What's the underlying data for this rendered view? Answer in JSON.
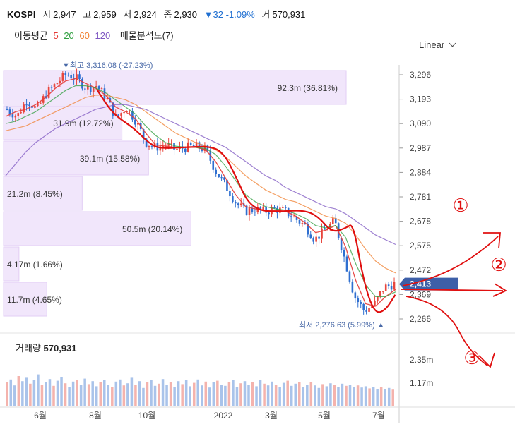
{
  "header": {
    "symbol": "KOSPI",
    "open_label": "시",
    "open": "2,947",
    "high_label": "고",
    "high": "2,959",
    "low_label": "저",
    "low": "2,924",
    "close_label": "종",
    "close": "2,930",
    "change": "▼32 -1.09%",
    "volume_label": "거",
    "volume": "570,931"
  },
  "indicators": {
    "ma_label": "이동평균",
    "ma_periods": [
      {
        "value": "5",
        "color": "#e53935"
      },
      {
        "value": "20",
        "color": "#2e9e3e"
      },
      {
        "value": "60",
        "color": "#f08030"
      },
      {
        "value": "120",
        "color": "#7e57c2"
      }
    ],
    "volume_profile_label": "매물분석도(7)"
  },
  "scale_toggle": "Linear",
  "volume_panel": {
    "label": "거래량",
    "value": "570,931",
    "y_ticks": [
      "2.35m",
      "1.17m"
    ]
  },
  "chart_data": {
    "type": "candlestick",
    "symbol": "KOSPI",
    "x_ticks": [
      "6월",
      "8월",
      "10월",
      "2022",
      "3월",
      "5월",
      "7월"
    ],
    "y_ticks": [
      3296,
      3193,
      3090,
      2987,
      2884,
      2781,
      2678,
      2575,
      2472,
      2369,
      2266
    ],
    "y_tick_labels": [
      "3,296",
      "3,193",
      "3,090",
      "2,987",
      "2,884",
      "2,781",
      "2,678",
      "2,575",
      "2,472",
      "2,369",
      "2,266"
    ],
    "y_range": [
      2230,
      3345
    ],
    "last_price": 2413,
    "last_price_label": "2,413",
    "high_annotation": {
      "text": "▼최고 3,316.08 (-27.23%)",
      "value": 3316.08
    },
    "low_annotation": {
      "text": "최저 2,276.63 (5.99%) ▲",
      "value": 2276.63
    },
    "close_path": [
      3150,
      3120,
      3190,
      3150,
      3220,
      3260,
      3300,
      3280,
      3240,
      3250,
      3200,
      3110,
      3160,
      3100,
      3010,
      2990,
      3000,
      2980,
      2990,
      2995,
      2980,
      2890,
      2830,
      2760,
      2720,
      2730,
      2720,
      2730,
      2720,
      2690,
      2660,
      2600,
      2640,
      2680,
      2520,
      2360,
      2300,
      2330,
      2400,
      2413
    ],
    "ma_series": [
      {
        "period": "5",
        "color": "#e53935",
        "values": [
          3120,
          3140,
          3150,
          3170,
          3200,
          3240,
          3270,
          3280,
          3260,
          3240,
          3210,
          3160,
          3140,
          3110,
          3050,
          3000,
          2995,
          2990,
          2990,
          2990,
          2980,
          2930,
          2860,
          2790,
          2740,
          2730,
          2725,
          2725,
          2720,
          2700,
          2670,
          2630,
          2640,
          2660,
          2570,
          2430,
          2330,
          2320,
          2360,
          2390
        ]
      },
      {
        "period": "20",
        "color": "#2e9e3e",
        "values": [
          3090,
          3100,
          3120,
          3140,
          3170,
          3200,
          3230,
          3250,
          3250,
          3240,
          3220,
          3190,
          3160,
          3130,
          3080,
          3040,
          3010,
          2995,
          2990,
          2990,
          2985,
          2960,
          2910,
          2850,
          2790,
          2760,
          2740,
          2730,
          2725,
          2710,
          2690,
          2660,
          2650,
          2660,
          2610,
          2500,
          2410,
          2360,
          2360,
          2380
        ]
      },
      {
        "period": "60",
        "color": "#f08030",
        "values": [
          3060,
          3070,
          3080,
          3100,
          3120,
          3140,
          3160,
          3180,
          3200,
          3210,
          3210,
          3200,
          3190,
          3170,
          3140,
          3110,
          3080,
          3050,
          3030,
          3010,
          2995,
          2980,
          2950,
          2910,
          2870,
          2840,
          2810,
          2790,
          2770,
          2760,
          2740,
          2720,
          2700,
          2690,
          2670,
          2620,
          2560,
          2510,
          2480,
          2460
        ]
      },
      {
        "period": "120",
        "color": "#7e57c2",
        "values": [
          2870,
          2920,
          2970,
          3010,
          3040,
          3070,
          3090,
          3110,
          3130,
          3150,
          3160,
          3170,
          3170,
          3160,
          3150,
          3130,
          3110,
          3090,
          3070,
          3050,
          3030,
          3010,
          2990,
          2960,
          2930,
          2900,
          2870,
          2850,
          2820,
          2800,
          2780,
          2760,
          2740,
          2730,
          2710,
          2680,
          2650,
          2620,
          2600,
          2580
        ]
      }
    ],
    "volume_profile": [
      {
        "label": "92.3m (36.81%)",
        "percent": 36.81
      },
      {
        "label": "31.9m (12.72%)",
        "percent": 12.72
      },
      {
        "label": "39.1m (15.58%)",
        "percent": 15.58
      },
      {
        "label": "21.2m (8.45%)",
        "percent": 8.45
      },
      {
        "label": "50.5m (20.14%)",
        "percent": 20.14
      },
      {
        "label": "4.17m (1.66%)",
        "percent": 1.66
      },
      {
        "label": "11.7m (4.65%)",
        "percent": 4.65
      }
    ],
    "volume_bars": [
      0.55,
      0.62,
      0.48,
      0.7,
      0.58,
      0.66,
      0.52,
      0.6,
      0.74,
      0.5,
      0.56,
      0.63,
      0.47,
      0.59,
      0.68,
      0.53,
      0.45,
      0.57,
      0.61,
      0.49,
      0.64,
      0.51,
      0.58,
      0.46,
      0.55,
      0.6,
      0.5,
      0.44,
      0.57,
      0.62,
      0.48,
      0.53,
      0.66,
      0.5,
      0.58,
      0.42,
      0.55,
      0.6,
      0.47,
      0.52,
      0.63,
      0.49,
      0.56,
      0.45,
      0.58,
      0.51,
      0.6,
      0.46,
      0.54,
      0.62,
      0.48,
      0.57,
      0.43,
      0.55,
      0.59,
      0.5,
      0.47,
      0.56,
      0.61,
      0.44,
      0.53,
      0.58,
      0.49,
      0.55,
      0.46,
      0.6,
      0.52,
      0.48,
      0.57,
      0.5,
      0.45,
      0.54,
      0.59,
      0.47,
      0.52,
      0.56,
      0.44,
      0.5,
      0.55,
      0.48,
      0.42,
      0.51,
      0.46,
      0.53,
      0.49,
      0.45,
      0.52,
      0.47,
      0.5,
      0.44,
      0.48,
      0.43,
      0.46,
      0.41,
      0.45,
      0.4,
      0.44,
      0.39,
      0.42,
      0.38
    ],
    "annotations": [
      "①",
      "②",
      "③"
    ]
  }
}
